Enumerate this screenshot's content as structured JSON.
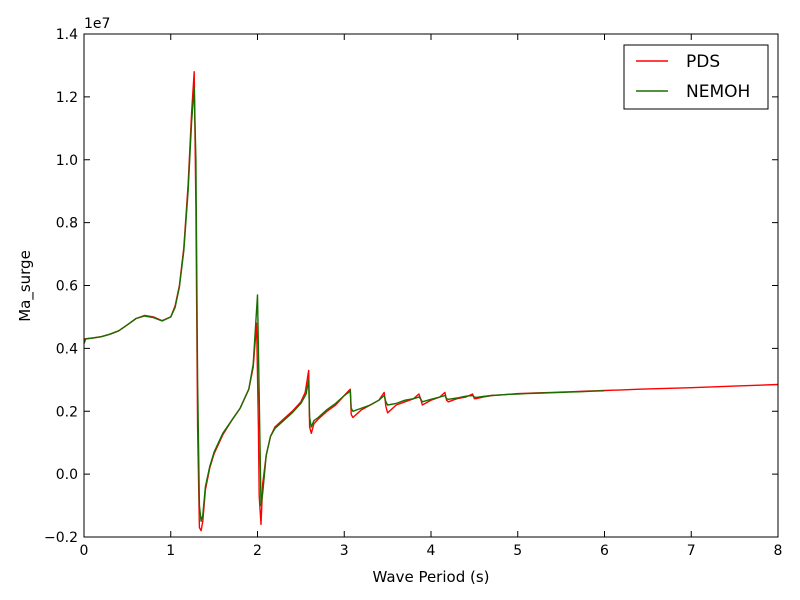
{
  "chart_data": {
    "type": "line",
    "xlabel": "Wave Period (s)",
    "ylabel": "Ma_surge",
    "y_scale_label": "1e7",
    "xlim": [
      0,
      8
    ],
    "ylim": [
      -2000000,
      14000000
    ],
    "grid": false,
    "legend_position": "top-right",
    "x_ticks": [
      "0",
      "1",
      "2",
      "3",
      "4",
      "5",
      "6",
      "7",
      "8"
    ],
    "y_ticks": [
      "−0.2",
      "0.0",
      "0.2",
      "0.4",
      "0.6",
      "0.8",
      "1.0",
      "1.2",
      "1.4"
    ],
    "series": [
      {
        "name": "PDS",
        "color": "#ff0000",
        "x": [
          0.0,
          0.1,
          0.2,
          0.3,
          0.4,
          0.5,
          0.6,
          0.7,
          0.8,
          0.9,
          1.0,
          1.05,
          1.1,
          1.15,
          1.2,
          1.24,
          1.27,
          1.29,
          1.31,
          1.33,
          1.35,
          1.37,
          1.4,
          1.45,
          1.5,
          1.6,
          1.7,
          1.8,
          1.9,
          1.95,
          1.99,
          2.01,
          2.02,
          2.04,
          2.06,
          2.1,
          2.15,
          2.2,
          2.3,
          2.4,
          2.5,
          2.55,
          2.59,
          2.6,
          2.62,
          2.65,
          2.7,
          2.8,
          2.9,
          3.0,
          3.05,
          3.07,
          3.08,
          3.1,
          3.2,
          3.3,
          3.4,
          3.46,
          3.48,
          3.5,
          3.6,
          3.7,
          3.8,
          3.86,
          3.88,
          3.9,
          4.0,
          4.1,
          4.16,
          4.18,
          4.2,
          4.3,
          4.4,
          4.48,
          4.5,
          4.52,
          4.6,
          4.7,
          4.8,
          4.9,
          5.0,
          5.1,
          5.2,
          5.3,
          5.4,
          5.5,
          5.6,
          5.7,
          5.8,
          5.9,
          6.0,
          6.1,
          6.2,
          6.3,
          6.4,
          6.5,
          7.0,
          7.5,
          8.0
        ],
        "y": [
          4300000,
          4330000,
          4370000,
          4450000,
          4560000,
          4750000,
          4950000,
          5050000,
          5000000,
          4880000,
          5000000,
          5350000,
          6000000,
          7200000,
          9200000,
          11500000,
          12800000,
          8500000,
          1500000,
          -1700000,
          -1800000,
          -1500000,
          -500000,
          200000,
          650000,
          1250000,
          1700000,
          2100000,
          2700000,
          3400000,
          4800000,
          1500000,
          -700000,
          -1600000,
          -300000,
          600000,
          1200000,
          1500000,
          1750000,
          2000000,
          2300000,
          2600000,
          3300000,
          1500000,
          1300000,
          1600000,
          1750000,
          2000000,
          2200000,
          2500000,
          2650000,
          2700000,
          1900000,
          1800000,
          2050000,
          2200000,
          2350000,
          2600000,
          2150000,
          1950000,
          2200000,
          2300000,
          2400000,
          2550000,
          2400000,
          2200000,
          2350000,
          2450000,
          2600000,
          2350000,
          2300000,
          2400000,
          2450000,
          2550000,
          2400000,
          2400000,
          2450000,
          2500000,
          2520000,
          2540000,
          2560000,
          2570000,
          2580000,
          2590000,
          2600000,
          2610000,
          2620000,
          2630000,
          2640000,
          2650000,
          2660000,
          2670000,
          2680000,
          2690000,
          2700000,
          2710000,
          2750000,
          2800000,
          2850000
        ]
      },
      {
        "name": "NEMOH",
        "color": "#1a6e00",
        "x": [
          0.0,
          0.02,
          0.1,
          0.2,
          0.3,
          0.4,
          0.5,
          0.6,
          0.7,
          0.8,
          0.9,
          1.0,
          1.05,
          1.1,
          1.15,
          1.2,
          1.24,
          1.27,
          1.29,
          1.31,
          1.33,
          1.35,
          1.37,
          1.4,
          1.45,
          1.5,
          1.6,
          1.7,
          1.8,
          1.9,
          1.95,
          2.0,
          2.02,
          2.04,
          2.06,
          2.1,
          2.15,
          2.2,
          2.3,
          2.4,
          2.5,
          2.56,
          2.59,
          2.6,
          2.62,
          2.65,
          2.7,
          2.8,
          2.9,
          3.0,
          3.05,
          3.07,
          3.08,
          3.1,
          3.2,
          3.3,
          3.4,
          3.46,
          3.48,
          3.5,
          3.6,
          3.7,
          3.8,
          3.86,
          3.88,
          3.9,
          4.0,
          4.1,
          4.16,
          4.18,
          4.2,
          4.3,
          4.4,
          4.48,
          4.5,
          4.52,
          4.6,
          4.7,
          4.8,
          4.9,
          5.0,
          5.1,
          5.2,
          5.3,
          5.4,
          5.5,
          5.6,
          5.7,
          5.8,
          5.9,
          6.0
        ],
        "y": [
          4150000,
          4300000,
          4330000,
          4370000,
          4450000,
          4560000,
          4750000,
          4950000,
          5030000,
          4980000,
          4870000,
          5000000,
          5300000,
          5950000,
          7100000,
          9000000,
          11200000,
          12300000,
          10000000,
          3000000,
          -1000000,
          -1500000,
          -1300000,
          -400000,
          250000,
          700000,
          1300000,
          1700000,
          2100000,
          2700000,
          3500000,
          5700000,
          2500000,
          -1000000,
          -600000,
          600000,
          1200000,
          1450000,
          1700000,
          1950000,
          2250000,
          2550000,
          3000000,
          1800000,
          1500000,
          1700000,
          1800000,
          2050000,
          2250000,
          2500000,
          2600000,
          2650000,
          2100000,
          2000000,
          2100000,
          2200000,
          2350000,
          2500000,
          2300000,
          2200000,
          2250000,
          2350000,
          2400000,
          2450000,
          2400000,
          2300000,
          2380000,
          2450000,
          2500000,
          2400000,
          2380000,
          2420000,
          2480000,
          2500000,
          2450000,
          2440000,
          2470000,
          2500000,
          2520000,
          2540000,
          2550000,
          2560000,
          2570000,
          2580000,
          2590000,
          2600000,
          2610000,
          2620000,
          2630000,
          2640000,
          2650000
        ]
      }
    ]
  }
}
